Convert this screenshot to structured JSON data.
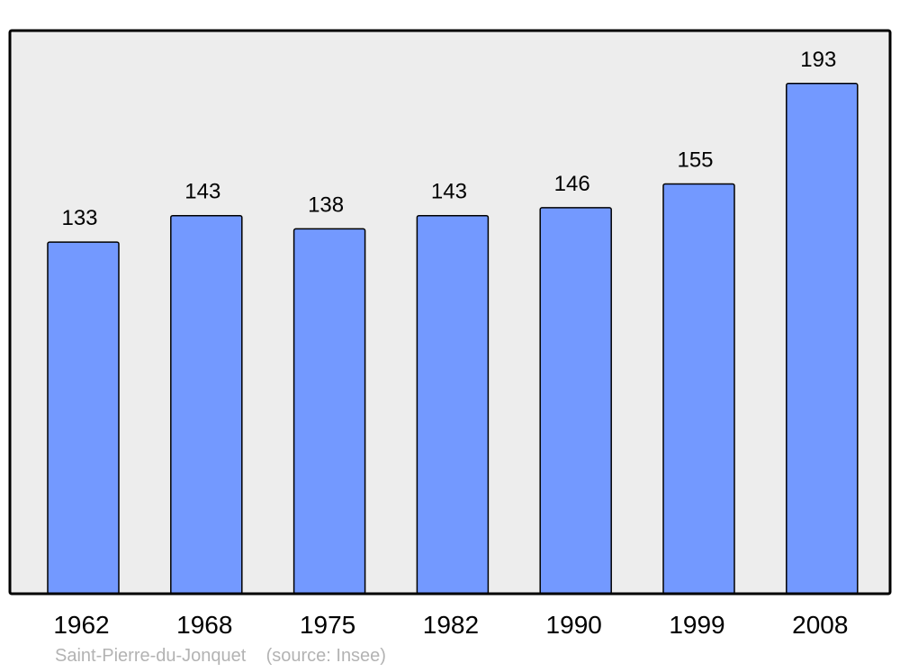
{
  "chart_data": {
    "type": "bar",
    "categories": [
      "1962",
      "1968",
      "1975",
      "1982",
      "1990",
      "1999",
      "2008"
    ],
    "values": [
      133,
      143,
      138,
      143,
      146,
      155,
      193
    ],
    "title": "",
    "xlabel": "",
    "ylabel": "",
    "ylim": [
      0,
      213
    ],
    "grid": false,
    "data_labels": true,
    "colors": {
      "bar": "#7399ff",
      "plot_background": "#ededed",
      "stroke": "#000000"
    }
  },
  "footer": {
    "place": "Saint-Pierre-du-Jonquet",
    "source": "(source: Insee)"
  }
}
